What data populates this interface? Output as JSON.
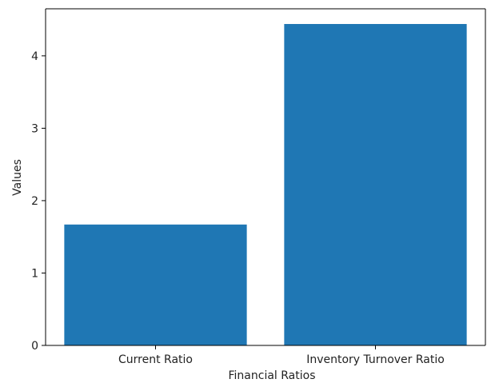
{
  "chart_data": {
    "type": "bar",
    "categories": [
      "Current Ratio",
      "Inventory Turnover Ratio"
    ],
    "values": [
      1.67,
      4.44
    ],
    "title": "",
    "xlabel": "Financial Ratios",
    "ylabel": "Values",
    "ylim": [
      0,
      4.65
    ],
    "yticks": [
      0,
      1,
      2,
      3,
      4
    ],
    "grid": false,
    "bar_color": "#1f77b4"
  }
}
